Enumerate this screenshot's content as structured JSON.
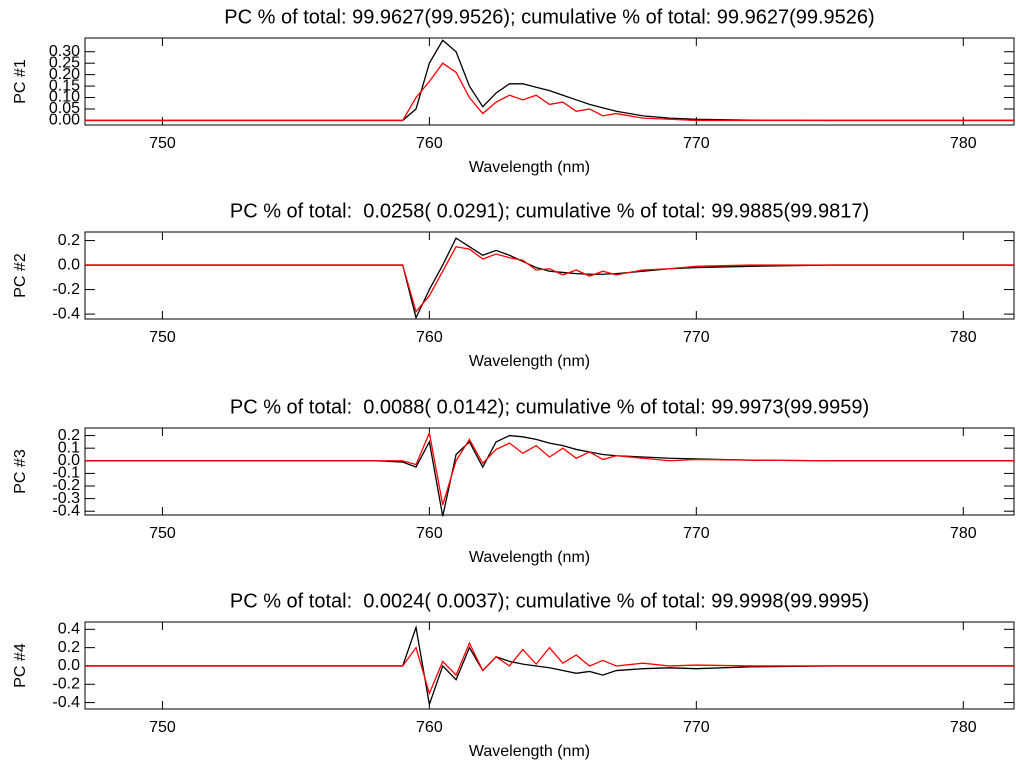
{
  "chart_data": [
    {
      "type": "line",
      "title": "PC % of total: 99.9627(99.9526); cumulative % of total: 99.9627(99.9526)",
      "x_label": "Wavelength (nm)",
      "y_label": "PC #1",
      "x": [
        747.1,
        755,
        758,
        759,
        759.5,
        760,
        760.5,
        761,
        761.5,
        762,
        762.5,
        763,
        763.5,
        764,
        764.5,
        765,
        765.5,
        766,
        766.5,
        767,
        768,
        769,
        770,
        772,
        775,
        781.9
      ],
      "series": [
        {
          "color": "#000000",
          "values": [
            0,
            0,
            0,
            0,
            0.05,
            0.25,
            0.35,
            0.3,
            0.15,
            0.06,
            0.12,
            0.16,
            0.16,
            0.145,
            0.13,
            0.11,
            0.09,
            0.07,
            0.055,
            0.04,
            0.02,
            0.01,
            0.005,
            0.001,
            0,
            0
          ]
        },
        {
          "color": "#ff0000",
          "values": [
            0,
            0,
            0,
            0,
            0.1,
            0.17,
            0.25,
            0.21,
            0.1,
            0.03,
            0.08,
            0.11,
            0.09,
            0.11,
            0.07,
            0.08,
            0.04,
            0.05,
            0.02,
            0.03,
            0.01,
            0.005,
            0,
            0,
            0,
            0
          ]
        }
      ],
      "xlim": [
        747.1,
        781.9
      ],
      "xticks": [
        750,
        760,
        770,
        780
      ],
      "ylim": [
        -0.02,
        0.36
      ],
      "yticks": [
        {
          "value": 0,
          "label": "0.00"
        },
        0.05,
        {
          "value": 0.1,
          "label": "0.10"
        },
        0.15,
        {
          "value": 0.2,
          "label": "0.20"
        },
        0.25,
        {
          "value": 0.3,
          "label": "0.30"
        }
      ]
    },
    {
      "type": "line",
      "title": "PC % of total:  0.0258( 0.0291); cumulative % of total: 99.9885(99.9817)",
      "x_label": "Wavelength (nm)",
      "y_label": "PC #2",
      "x": [
        747.1,
        755,
        758,
        759,
        759.5,
        760,
        760.5,
        761,
        761.5,
        762,
        762.5,
        763,
        763.5,
        764,
        764.5,
        765,
        765.5,
        766,
        766.5,
        767,
        768,
        769,
        770,
        772,
        775,
        781.9
      ],
      "series": [
        {
          "color": "#000000",
          "values": [
            0,
            0,
            0,
            0,
            -0.43,
            -0.2,
            0,
            0.22,
            0.15,
            0.08,
            0.12,
            0.08,
            0.03,
            -0.02,
            -0.05,
            -0.06,
            -0.07,
            -0.075,
            -0.075,
            -0.07,
            -0.05,
            -0.03,
            -0.02,
            -0.01,
            0,
            0
          ]
        },
        {
          "color": "#ff0000",
          "values": [
            0,
            0,
            0,
            0,
            -0.38,
            -0.25,
            -0.05,
            0.15,
            0.13,
            0.05,
            0.09,
            0.06,
            0.04,
            -0.04,
            -0.03,
            -0.08,
            -0.04,
            -0.09,
            -0.05,
            -0.08,
            -0.04,
            -0.03,
            -0.01,
            0,
            0,
            0
          ]
        }
      ],
      "xlim": [
        747.1,
        781.9
      ],
      "xticks": [
        750,
        760,
        770,
        780
      ],
      "ylim": [
        -0.44,
        0.27
      ],
      "yticks": [
        -0.4,
        -0.2,
        {
          "value": 0,
          "label": "0.0"
        },
        0.2
      ]
    },
    {
      "type": "line",
      "title": "PC % of total:  0.0088( 0.0142); cumulative % of total: 99.9973(99.9959)",
      "x_label": "Wavelength (nm)",
      "y_label": "PC #3",
      "x": [
        747.1,
        755,
        758,
        759,
        759.5,
        760,
        760.5,
        761,
        761.5,
        762,
        762.5,
        763,
        763.5,
        764,
        764.5,
        765,
        765.5,
        766,
        766.5,
        767,
        768,
        769,
        770,
        772,
        775,
        781.9
      ],
      "series": [
        {
          "color": "#000000",
          "values": [
            0,
            0,
            0,
            -0.01,
            -0.05,
            0.15,
            -0.44,
            0.05,
            0.15,
            -0.05,
            0.15,
            0.2,
            0.19,
            0.17,
            0.14,
            0.12,
            0.09,
            0.07,
            0.05,
            0.04,
            0.03,
            0.02,
            0.015,
            0.005,
            0,
            0
          ]
        },
        {
          "color": "#ff0000",
          "values": [
            0,
            0,
            0,
            0,
            -0.03,
            0.22,
            -0.35,
            0,
            0.17,
            -0.02,
            0.09,
            0.14,
            0.06,
            0.12,
            0.03,
            0.1,
            0.02,
            0.07,
            0.01,
            0.04,
            0.02,
            0,
            0.01,
            0.005,
            0,
            0
          ]
        }
      ],
      "xlim": [
        747.1,
        781.9
      ],
      "xticks": [
        750,
        760,
        770,
        780
      ],
      "ylim": [
        -0.43,
        0.26
      ],
      "yticks": [
        -0.4,
        -0.3,
        -0.2,
        -0.1,
        {
          "value": 0,
          "label": "0.0"
        },
        0.1,
        0.2
      ]
    },
    {
      "type": "line",
      "title": "PC % of total:  0.0024( 0.0037); cumulative % of total: 99.9998(99.9995)",
      "x_label": "Wavelength (nm)",
      "y_label": "PC #4",
      "x": [
        747.1,
        755,
        758,
        759,
        759.5,
        760,
        760.5,
        761,
        761.5,
        762,
        762.5,
        763,
        763.5,
        764,
        764.5,
        765,
        765.5,
        766,
        766.5,
        767,
        768,
        769,
        770,
        772,
        775,
        781.9
      ],
      "series": [
        {
          "color": "#000000",
          "values": [
            0,
            0,
            0,
            0,
            0.42,
            -0.42,
            0,
            -0.15,
            0.2,
            -0.05,
            0.1,
            0.05,
            0.02,
            0,
            -0.02,
            -0.05,
            -0.08,
            -0.06,
            -0.1,
            -0.05,
            -0.03,
            -0.02,
            -0.03,
            -0.01,
            0,
            0
          ]
        },
        {
          "color": "#ff0000",
          "values": [
            0,
            0,
            0,
            0,
            0.2,
            -0.3,
            0.05,
            -0.1,
            0.25,
            -0.05,
            0.1,
            0,
            0.18,
            0.02,
            0.2,
            0.03,
            0.12,
            0,
            0.06,
            0,
            0.03,
            0,
            0.01,
            0,
            0,
            0
          ]
        }
      ],
      "xlim": [
        747.1,
        781.9
      ],
      "xticks": [
        750,
        760,
        770,
        780
      ],
      "ylim": [
        -0.47,
        0.48
      ],
      "yticks": [
        -0.4,
        -0.2,
        {
          "value": 0,
          "label": "0.0"
        },
        0.2,
        0.4
      ]
    }
  ]
}
